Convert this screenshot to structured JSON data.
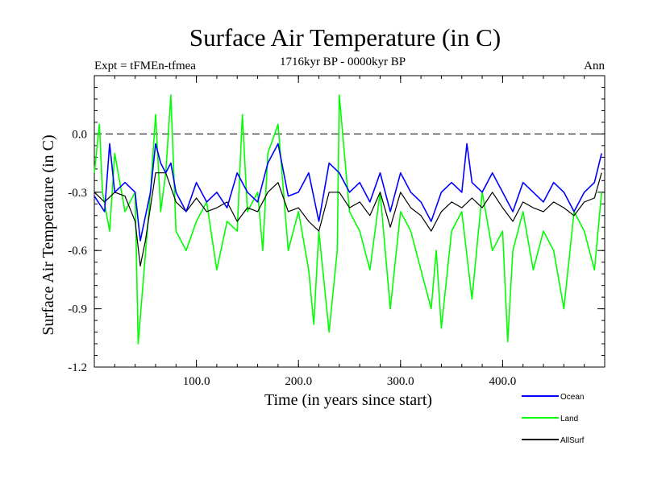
{
  "chart_data": {
    "type": "line",
    "title": "Surface Air Temperature (in C)",
    "subtitle_left": "Expt = tFMEn-tfmea",
    "subtitle_center": "1716kyr BP - 0000kyr BP",
    "subtitle_right": "Ann",
    "xlabel": "Time (in years since start)",
    "ylabel": "Surface Air Temperature (in C)",
    "xlim": [
      0,
      500
    ],
    "ylim": [
      -1.2,
      0.3
    ],
    "x_ticks": [
      {
        "value": 100,
        "label": "100.0"
      },
      {
        "value": 200,
        "label": "200.0"
      },
      {
        "value": 300,
        "label": "300.0"
      },
      {
        "value": 400,
        "label": "400.0"
      }
    ],
    "y_ticks": [
      {
        "value": 0.0,
        "label": "0.0"
      },
      {
        "value": -0.3,
        "label": "-0.3"
      },
      {
        "value": -0.6,
        "label": "-0.6"
      },
      {
        "value": -0.9,
        "label": "-0.9"
      },
      {
        "value": -1.2,
        "label": "-1.2"
      }
    ],
    "reference_line": {
      "y": 0.0,
      "style": "dashed"
    },
    "legend": {
      "placement": "bottom-right"
    },
    "series": [
      {
        "name": "Ocean",
        "color": "#0000ff",
        "x": [
          0,
          10,
          15,
          20,
          30,
          40,
          45,
          55,
          60,
          65,
          70,
          75,
          80,
          90,
          100,
          110,
          120,
          130,
          140,
          150,
          160,
          170,
          180,
          190,
          200,
          210,
          220,
          230,
          240,
          250,
          260,
          270,
          280,
          290,
          300,
          310,
          320,
          330,
          340,
          350,
          360,
          365,
          370,
          380,
          390,
          400,
          410,
          420,
          430,
          440,
          450,
          460,
          470,
          480,
          490,
          497
        ],
        "values": [
          -0.32,
          -0.4,
          -0.05,
          -0.3,
          -0.25,
          -0.3,
          -0.55,
          -0.3,
          -0.05,
          -0.15,
          -0.2,
          -0.15,
          -0.3,
          -0.4,
          -0.25,
          -0.35,
          -0.3,
          -0.38,
          -0.2,
          -0.3,
          -0.35,
          -0.15,
          -0.05,
          -0.32,
          -0.3,
          -0.2,
          -0.45,
          -0.15,
          -0.2,
          -0.3,
          -0.25,
          -0.35,
          -0.2,
          -0.4,
          -0.2,
          -0.3,
          -0.35,
          -0.45,
          -0.3,
          -0.25,
          -0.3,
          -0.05,
          -0.25,
          -0.3,
          -0.2,
          -0.3,
          -0.4,
          -0.25,
          -0.3,
          -0.35,
          -0.25,
          -0.3,
          -0.4,
          -0.3,
          -0.25,
          -0.1
        ]
      },
      {
        "name": "Land",
        "color": "#00ff00",
        "x": [
          0,
          5,
          8,
          15,
          20,
          30,
          40,
          43,
          48,
          55,
          60,
          65,
          70,
          75,
          80,
          90,
          100,
          110,
          120,
          130,
          140,
          145,
          150,
          160,
          165,
          170,
          180,
          190,
          200,
          210,
          215,
          220,
          230,
          238,
          240,
          250,
          260,
          270,
          280,
          290,
          300,
          310,
          320,
          330,
          335,
          340,
          350,
          360,
          370,
          380,
          390,
          400,
          405,
          410,
          420,
          430,
          440,
          450,
          460,
          470,
          480,
          490,
          497
        ],
        "values": [
          -0.2,
          0.05,
          -0.3,
          -0.5,
          -0.1,
          -0.4,
          -0.3,
          -1.08,
          -0.75,
          -0.3,
          0.1,
          -0.4,
          -0.2,
          0.2,
          -0.5,
          -0.6,
          -0.45,
          -0.35,
          -0.7,
          -0.45,
          -0.5,
          0.1,
          -0.4,
          -0.3,
          -0.6,
          -0.1,
          0.05,
          -0.6,
          -0.4,
          -0.7,
          -0.98,
          -0.5,
          -1.02,
          -0.6,
          0.2,
          -0.4,
          -0.5,
          -0.7,
          -0.3,
          -0.9,
          -0.4,
          -0.5,
          -0.7,
          -0.9,
          -0.6,
          -1.0,
          -0.5,
          -0.4,
          -0.85,
          -0.3,
          -0.6,
          -0.5,
          -1.07,
          -0.6,
          -0.4,
          -0.7,
          -0.5,
          -0.6,
          -0.9,
          -0.4,
          -0.5,
          -0.7,
          -0.3
        ]
      },
      {
        "name": "AllSurf",
        "color": "#000000",
        "x": [
          0,
          10,
          20,
          30,
          40,
          45,
          50,
          60,
          70,
          80,
          90,
          100,
          110,
          120,
          130,
          140,
          150,
          160,
          170,
          180,
          190,
          200,
          210,
          220,
          230,
          240,
          250,
          260,
          270,
          280,
          290,
          300,
          310,
          320,
          330,
          340,
          350,
          360,
          370,
          380,
          390,
          400,
          410,
          420,
          430,
          440,
          450,
          460,
          470,
          480,
          490,
          497
        ],
        "values": [
          -0.3,
          -0.35,
          -0.3,
          -0.32,
          -0.45,
          -0.68,
          -0.55,
          -0.2,
          -0.2,
          -0.35,
          -0.4,
          -0.33,
          -0.4,
          -0.38,
          -0.35,
          -0.45,
          -0.38,
          -0.4,
          -0.3,
          -0.25,
          -0.4,
          -0.38,
          -0.45,
          -0.5,
          -0.3,
          -0.3,
          -0.38,
          -0.35,
          -0.42,
          -0.3,
          -0.48,
          -0.3,
          -0.38,
          -0.42,
          -0.5,
          -0.4,
          -0.35,
          -0.38,
          -0.33,
          -0.38,
          -0.3,
          -0.38,
          -0.45,
          -0.35,
          -0.38,
          -0.4,
          -0.35,
          -0.38,
          -0.42,
          -0.35,
          -0.33,
          -0.2
        ]
      }
    ]
  }
}
